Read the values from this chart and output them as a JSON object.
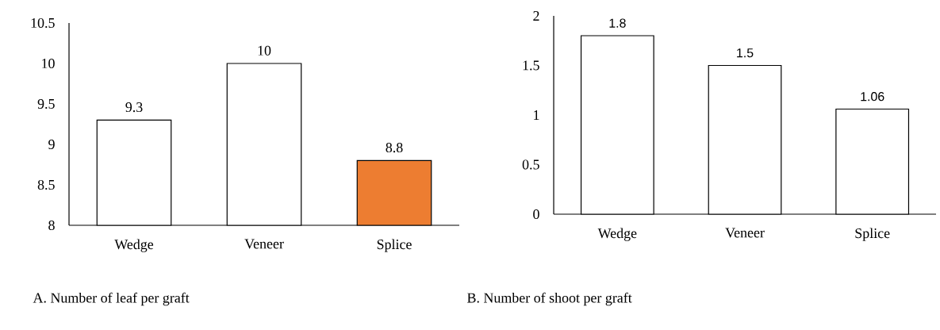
{
  "chart_data": [
    {
      "type": "bar",
      "title": "A.  Number of leaf per graft",
      "categories": [
        "Wedge",
        "Veneer",
        "Splice"
      ],
      "values": [
        9.3,
        10,
        8.8
      ],
      "colors": [
        "#ffffff",
        "#ffffff",
        "#ed7d31"
      ],
      "ylim": [
        8,
        10.5
      ],
      "yticks": [
        8,
        8.5,
        9,
        9.5,
        10,
        10.5
      ],
      "data_labels": true
    },
    {
      "type": "bar",
      "title": "B.  Number of shoot per graft",
      "categories": [
        "Wedge",
        "Veneer",
        "Splice"
      ],
      "values": [
        1.8,
        1.5,
        1.06
      ],
      "colors": [
        "#ffffff",
        "#ffffff",
        "#ffffff"
      ],
      "ylim": [
        0,
        2
      ],
      "yticks": [
        0,
        0.5,
        1,
        1.5,
        2
      ],
      "data_labels": true
    }
  ]
}
